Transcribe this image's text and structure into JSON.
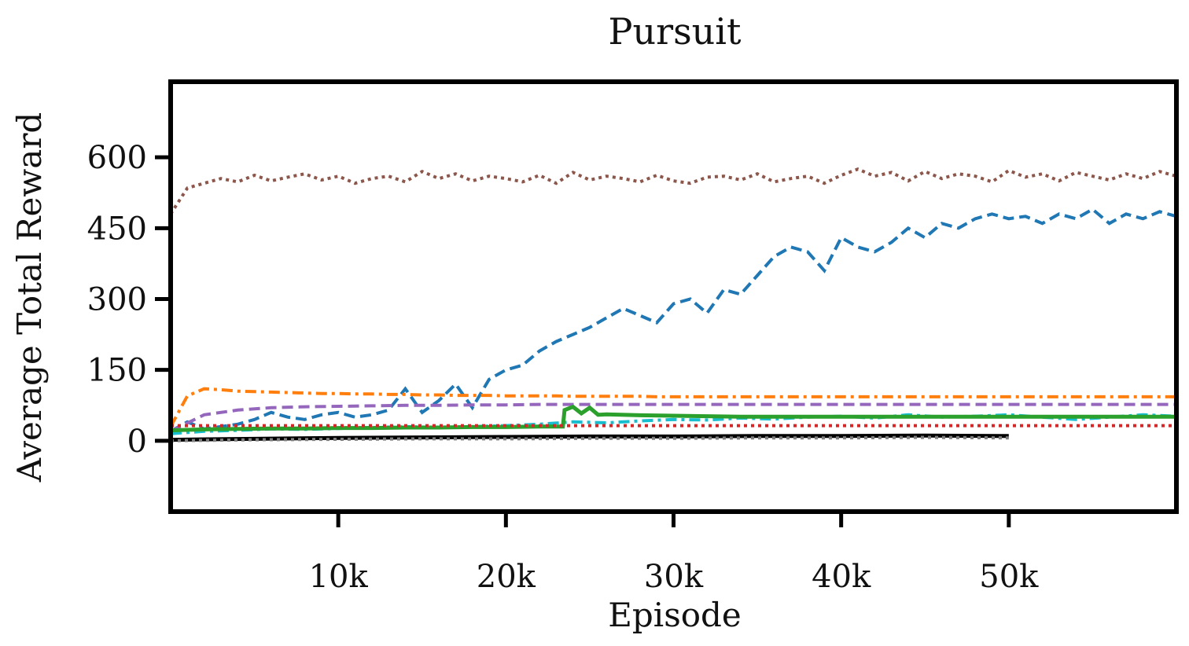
{
  "chart_data": {
    "type": "line",
    "title": "Pursuit",
    "xlabel": "Episode",
    "ylabel": "Average Total Reward",
    "xlim": [
      0,
      60000
    ],
    "ylim": [
      -150,
      760
    ],
    "xticks": [
      10000,
      20000,
      30000,
      40000,
      50000
    ],
    "xtick_labels": [
      "10k",
      "20k",
      "30k",
      "40k",
      "50k"
    ],
    "yticks": [
      0,
      150,
      300,
      450,
      600
    ],
    "ytick_labels": [
      "0",
      "150",
      "300",
      "450",
      "600"
    ],
    "grid": false,
    "legend": "none",
    "series": [
      {
        "color": "#8c564b",
        "style": "dotted",
        "x": [
          0,
          1000,
          2000,
          3000,
          4000,
          5000,
          6000,
          7000,
          8000,
          9000,
          10000,
          11000,
          12000,
          13000,
          14000,
          15000,
          16000,
          17000,
          18000,
          19000,
          20000,
          21000,
          22000,
          23000,
          24000,
          25000,
          26000,
          27000,
          28000,
          29000,
          30000,
          31000,
          32000,
          33000,
          34000,
          35000,
          36000,
          37000,
          38000,
          39000,
          40000,
          41000,
          42000,
          43000,
          44000,
          45000,
          46000,
          47000,
          48000,
          49000,
          50000,
          51000,
          52000,
          53000,
          54000,
          55000,
          56000,
          57000,
          58000,
          59000,
          60000
        ],
        "y": [
          480,
          535,
          545,
          555,
          548,
          562,
          550,
          558,
          565,
          552,
          560,
          545,
          555,
          560,
          548,
          570,
          555,
          565,
          550,
          560,
          555,
          548,
          562,
          545,
          568,
          552,
          560,
          555,
          548,
          562,
          550,
          545,
          558,
          560,
          552,
          565,
          548,
          555,
          560,
          545,
          562,
          575,
          560,
          568,
          550,
          570,
          555,
          565,
          560,
          548,
          572,
          558,
          565,
          550,
          568,
          560,
          552,
          565,
          555,
          570,
          560
        ]
      },
      {
        "color": "#1f77b4",
        "style": "dashed",
        "x": [
          0,
          1000,
          2000,
          3000,
          4000,
          5000,
          6000,
          7000,
          8000,
          9000,
          10000,
          11000,
          12000,
          13000,
          14000,
          15000,
          16000,
          17000,
          18000,
          19000,
          20000,
          21000,
          22000,
          23000,
          24000,
          25000,
          26000,
          27000,
          28000,
          29000,
          30000,
          31000,
          32000,
          33000,
          34000,
          35000,
          36000,
          37000,
          38000,
          39000,
          40000,
          41000,
          42000,
          43000,
          44000,
          45000,
          46000,
          47000,
          48000,
          49000,
          50000,
          51000,
          52000,
          53000,
          54000,
          55000,
          56000,
          57000,
          58000,
          59000,
          60000
        ],
        "y": [
          20,
          40,
          25,
          30,
          35,
          45,
          60,
          50,
          45,
          55,
          60,
          50,
          55,
          65,
          110,
          60,
          85,
          120,
          70,
          130,
          150,
          160,
          190,
          210,
          225,
          240,
          260,
          280,
          265,
          250,
          290,
          300,
          270,
          320,
          310,
          350,
          390,
          410,
          400,
          360,
          430,
          410,
          400,
          420,
          450,
          430,
          460,
          450,
          470,
          480,
          470,
          475,
          460,
          480,
          470,
          490,
          460,
          480,
          470,
          485,
          475
        ]
      },
      {
        "color": "#ff7f0e",
        "style": "dashdot",
        "x": [
          0,
          1000,
          2000,
          3000,
          4000,
          5000,
          6000,
          7000,
          8000,
          9000,
          10000,
          11000,
          12000,
          13000,
          14000,
          15000,
          16000,
          17000,
          18000,
          19000,
          20000,
          21000,
          22000,
          23000,
          24000,
          25000,
          26000,
          27000,
          28000,
          29000,
          30000,
          31000,
          32000,
          33000,
          34000,
          35000,
          36000,
          37000,
          38000,
          39000,
          40000,
          41000,
          42000,
          43000,
          44000,
          45000,
          46000,
          47000,
          48000,
          49000,
          50000,
          51000,
          52000,
          53000,
          54000,
          55000,
          56000,
          57000,
          58000,
          59000,
          60000
        ],
        "y": [
          30,
          95,
          110,
          108,
          105,
          104,
          103,
          102,
          101,
          100,
          100,
          99,
          99,
          98,
          98,
          97,
          97,
          96,
          96,
          96,
          95,
          95,
          95,
          95,
          94,
          94,
          94,
          94,
          94,
          93,
          93,
          93,
          93,
          93,
          93,
          93,
          93,
          93,
          93,
          93,
          93,
          93,
          93,
          93,
          93,
          93,
          93,
          93,
          93,
          93,
          93,
          93,
          93,
          93,
          93,
          93,
          93,
          93,
          93,
          93,
          93
        ]
      },
      {
        "color": "#9467bd",
        "style": "dashed",
        "x": [
          0,
          2000,
          4000,
          6000,
          8000,
          10000,
          12000,
          14000,
          16000,
          18000,
          20000,
          22000,
          24000,
          26000,
          28000,
          30000,
          32000,
          34000,
          36000,
          38000,
          40000,
          42000,
          44000,
          46000,
          48000,
          50000,
          52000,
          54000,
          56000,
          58000,
          60000
        ],
        "y": [
          20,
          55,
          65,
          70,
          72,
          73,
          74,
          75,
          75,
          76,
          76,
          77,
          77,
          77,
          77,
          77,
          77,
          77,
          77,
          77,
          77,
          77,
          77,
          77,
          77,
          77,
          77,
          77,
          77,
          77,
          77
        ]
      },
      {
        "color": "#17becf",
        "style": "dashdot",
        "x": [
          0,
          2000,
          4000,
          6000,
          8000,
          10000,
          12000,
          14000,
          16000,
          18000,
          20000,
          22000,
          24000,
          26000,
          28000,
          30000,
          32000,
          34000,
          36000,
          38000,
          40000,
          42000,
          44000,
          46000,
          48000,
          50000,
          52000,
          54000,
          56000,
          58000,
          60000
        ],
        "y": [
          15,
          20,
          22,
          25,
          24,
          26,
          28,
          30,
          28,
          30,
          32,
          35,
          40,
          38,
          42,
          45,
          44,
          48,
          46,
          50,
          52,
          48,
          55,
          50,
          52,
          55,
          50,
          45,
          50,
          55,
          52
        ]
      },
      {
        "color": "#2ca02c",
        "style": "solid",
        "x": [
          0,
          2000,
          4000,
          6000,
          8000,
          10000,
          12000,
          14000,
          16000,
          18000,
          20000,
          22000,
          23400,
          23500,
          24000,
          24500,
          25000,
          25500,
          26000,
          28000,
          30000,
          32000,
          34000,
          36000,
          38000,
          40000,
          42000,
          44000,
          46000,
          48000,
          50000,
          52000,
          54000,
          56000,
          58000,
          60000
        ],
        "y": [
          22,
          24,
          25,
          26,
          26,
          27,
          27,
          28,
          28,
          29,
          29,
          30,
          30,
          65,
          72,
          58,
          70,
          55,
          56,
          54,
          53,
          52,
          51,
          51,
          51,
          51,
          51,
          51,
          51,
          51,
          51,
          51,
          51,
          51,
          51,
          51
        ]
      },
      {
        "color": "#d62728",
        "style": "dotted",
        "x": [
          0,
          60000
        ],
        "y": [
          32,
          32
        ]
      },
      {
        "color": "#000000",
        "style": "solid",
        "x": [
          0,
          5000,
          10000,
          15000,
          20000,
          25000,
          30000,
          35000,
          40000,
          45000,
          50000
        ],
        "y": [
          2,
          4,
          6,
          7,
          8,
          9,
          9,
          10,
          10,
          11,
          10
        ]
      },
      {
        "color": "#7f7f7f",
        "style": "dotted",
        "x": [
          0,
          5000,
          10000,
          15000,
          20000,
          25000,
          30000,
          35000,
          40000,
          45000,
          50000
        ],
        "y": [
          0,
          2,
          3,
          4,
          4,
          5,
          5,
          6,
          6,
          7,
          6
        ]
      }
    ]
  }
}
